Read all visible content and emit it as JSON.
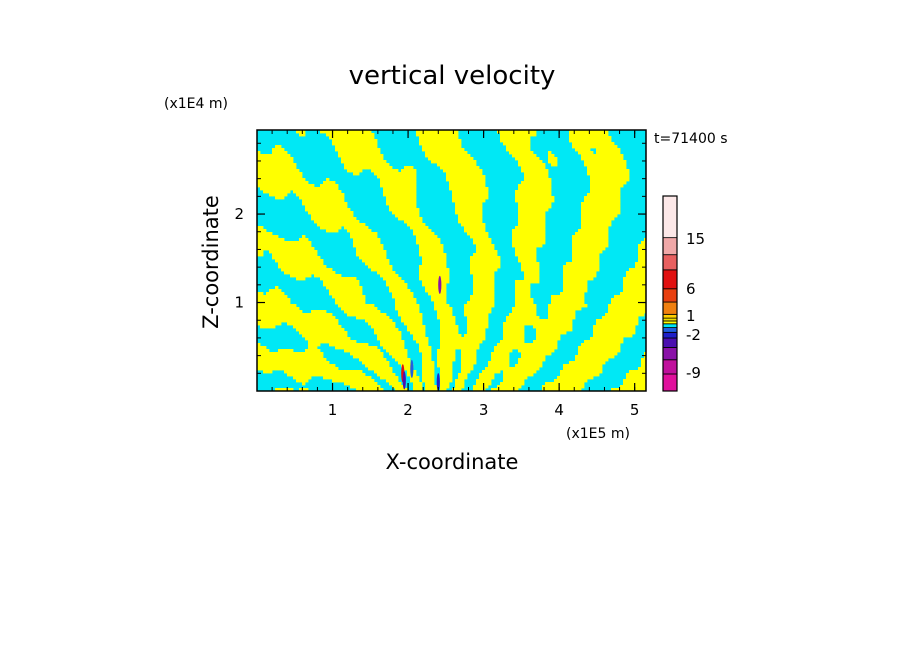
{
  "chart_data": {
    "type": "heatmap",
    "title": "vertical velocity",
    "xlabel": "X-coordinate",
    "ylabel": "Z-coordinate",
    "x_unit": "(x1E5 m)",
    "y_unit": "(x1E4 m)",
    "time_label": "t=71400 s",
    "xlim": [
      0,
      5.15
    ],
    "ylim": [
      0,
      2.95
    ],
    "x_ticks": [
      "1",
      "2",
      "3",
      "4",
      "5"
    ],
    "x_tick_values": [
      1,
      2,
      3,
      4,
      5
    ],
    "y_ticks": [
      "1",
      "2"
    ],
    "y_tick_values": [
      1,
      2
    ],
    "grid": false,
    "colorbar": {
      "levels": [
        {
          "color": "#e0109c"
        },
        {
          "color": "#c0109c"
        },
        {
          "color": "#8a12a8"
        },
        {
          "color": "#4b0fb0"
        },
        {
          "color": "#2020c8"
        },
        {
          "color": "#2060e0"
        },
        {
          "color": "#00e8f5"
        },
        {
          "color": "#ffff00"
        },
        {
          "color": "#f0e000"
        },
        {
          "color": "#ffd000"
        },
        {
          "color": "#f08010"
        },
        {
          "color": "#e84010"
        },
        {
          "color": "#e01010"
        },
        {
          "color": "#e86060"
        },
        {
          "color": "#f0a8a8"
        },
        {
          "color": "#fce8e8"
        }
      ],
      "tick_labels": [
        "-9",
        "-2",
        "1",
        "6",
        "15"
      ]
    },
    "dominant_colors": {
      "updraft": "#ffff00",
      "downdraft": "#00e8f5"
    }
  }
}
